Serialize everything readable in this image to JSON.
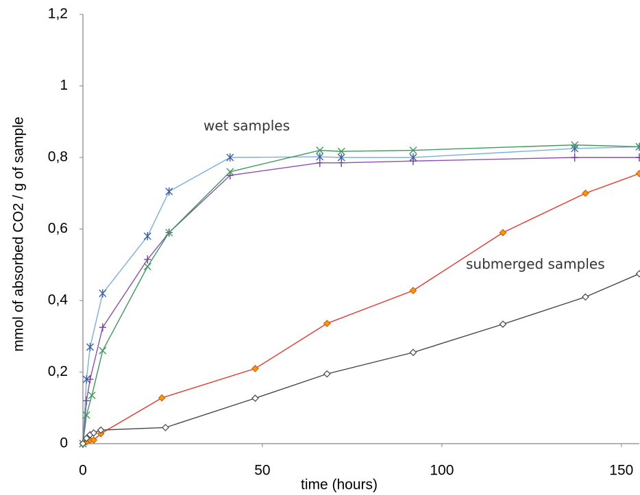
{
  "chart_data": {
    "type": "line",
    "xlabel": "time  (hours)",
    "ylabel": "mmol of absorbed CO2 / g of sample",
    "annotations": [
      "wet samples",
      "submerged samples"
    ],
    "xlim": [
      0,
      155
    ],
    "xticks": [
      0,
      50,
      100,
      150
    ],
    "ylim": [
      0,
      1.2
    ],
    "yticks": [
      0,
      {
        "value": 0.2,
        "label": "0,2"
      },
      {
        "value": 0.4,
        "label": "0,4"
      },
      {
        "value": 0.6,
        "label": "0,6"
      },
      {
        "value": 0.8,
        "label": "0,8"
      },
      1,
      {
        "value": 1.2,
        "label": "1,2"
      }
    ],
    "grid": false,
    "series": [
      {
        "color": "#7aaee0",
        "marker": "asterisk",
        "marker_color": "#3a5fa8",
        "x": [
          0,
          1,
          2,
          5.5,
          18,
          24,
          41,
          66,
          72,
          92,
          137,
          155
        ],
        "values": [
          0,
          0.18,
          0.27,
          0.42,
          0.58,
          0.705,
          0.8,
          0.802,
          0.8,
          0.8,
          0.825,
          0.83
        ]
      },
      {
        "color": "#8a4fb0",
        "marker": "plus",
        "marker_color": "#7a3aa0",
        "x": [
          0,
          1,
          2,
          5.5,
          18,
          24,
          41,
          66,
          72,
          92,
          137,
          155
        ],
        "values": [
          0,
          0.12,
          0.18,
          0.325,
          0.515,
          0.59,
          0.75,
          0.785,
          0.785,
          0.79,
          0.8,
          0.8
        ]
      },
      {
        "color": "#3a9a5a",
        "marker": "x",
        "marker_color": "#3a9a5a",
        "x": [
          0,
          1,
          2.5,
          5.5,
          18,
          24,
          41,
          66,
          72,
          92,
          137,
          155
        ],
        "values": [
          0,
          0.08,
          0.135,
          0.26,
          0.495,
          0.59,
          0.76,
          0.82,
          0.817,
          0.82,
          0.835,
          0.83
        ]
      },
      {
        "color": "#e8362c",
        "marker": "diamond",
        "marker_color": "#d06000",
        "marker_fill": "#ff9900",
        "x": [
          0,
          1,
          2,
          3,
          5,
          22,
          48,
          68,
          92,
          117,
          140,
          155
        ],
        "values": [
          0,
          0.005,
          0.01,
          0.01,
          0.028,
          0.128,
          0.21,
          0.336,
          0.428,
          0.59,
          0.7,
          0.755
        ]
      },
      {
        "color": "#444444",
        "marker": "diamond",
        "marker_color": "#444444",
        "marker_fill": "#ffffff",
        "x": [
          0,
          1,
          2,
          3,
          5,
          23,
          48,
          68,
          92,
          117,
          140,
          155
        ],
        "values": [
          0,
          0.015,
          0.025,
          0.03,
          0.038,
          0.045,
          0.127,
          0.195,
          0.255,
          0.334,
          0.41,
          0.475
        ]
      }
    ]
  }
}
